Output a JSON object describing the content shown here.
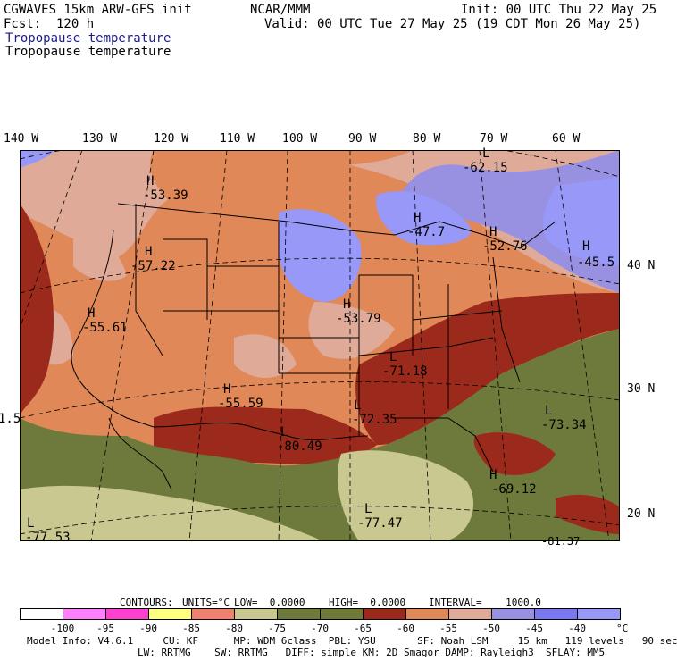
{
  "header": {
    "model": "CGWAVES 15km ARW-GFS init",
    "fcst": "Fcst:  120 h",
    "org": "NCAR/MMM",
    "init": "Init: 00 UTC Thu 22 May 25",
    "valid": "Valid: 00 UTC Tue 27 May 25 (19 CDT Mon 26 May 25)",
    "field1": "Tropopause temperature",
    "field2": "Tropopause temperature"
  },
  "longitudes": [
    "140 W",
    "130 W",
    "120 W",
    "110 W",
    "100 W",
    "90 W",
    "80 W",
    "70 W",
    "60 W"
  ],
  "latitudes": [
    "40 N",
    "30 N",
    "20 N"
  ],
  "map_labels": [
    {
      "kind": "H",
      "value": "-53.39"
    },
    {
      "kind": "L",
      "value": "-62.15"
    },
    {
      "kind": "H",
      "value": "-47.7"
    },
    {
      "kind": "H",
      "value": "-52.76"
    },
    {
      "kind": "H",
      "value": "-45.5"
    },
    {
      "kind": "H",
      "value": "-57.22"
    },
    {
      "kind": "H",
      "value": "-55.61"
    },
    {
      "kind": "H",
      "value": "-53.79"
    },
    {
      "kind": "L",
      "value": "-71.18"
    },
    {
      "kind": "H",
      "value": "-55.59"
    },
    {
      "kind": "L",
      "value": "-72.35"
    },
    {
      "kind": "L",
      "value": "-73.34"
    },
    {
      "kind": "",
      "value": "1.5"
    },
    {
      "kind": "L",
      "value": "-80.49"
    },
    {
      "kind": "H",
      "value": "-69.12"
    },
    {
      "kind": "L",
      "value": "-77.47"
    },
    {
      "kind": "L",
      "value": "-77.53"
    },
    {
      "kind": "",
      "value": "-81.37"
    }
  ],
  "contour_info": {
    "contours": "CONTOURS:",
    "units": "UNITS=°C",
    "low": "LOW=  0.0000",
    "high": "HIGH=  0.0000",
    "interval": "INTERVAL=    1000.0"
  },
  "colorbar": {
    "unit": "°C",
    "labels": [
      "-100",
      "-95",
      "-90",
      "-85",
      "-80",
      "-75",
      "-70",
      "-65",
      "-60",
      "-55",
      "-50",
      "-45",
      "-40"
    ],
    "colors": [
      "#ffffff",
      "#ff80ff",
      "#ff40d0",
      "#ffff80",
      "#f08070",
      "#c8c890",
      "#6e7a3c",
      "#707a38",
      "#9c2a1c",
      "#e08858",
      "#e0aa98",
      "#9890e0",
      "#7a78f0",
      "#9898f8"
    ]
  },
  "footer": {
    "line1": "Model Info: V4.6.1     CU: KF      MP: WDM 6class  PBL: YSU       SF: Noah LSM     15 km   119 levels   90 sec",
    "line2": "LW: RRTMG    SW: RRTMG   DIFF: simple KM: 2D Smagor DAMP: Rayleigh3  SFLAY: MM5"
  }
}
